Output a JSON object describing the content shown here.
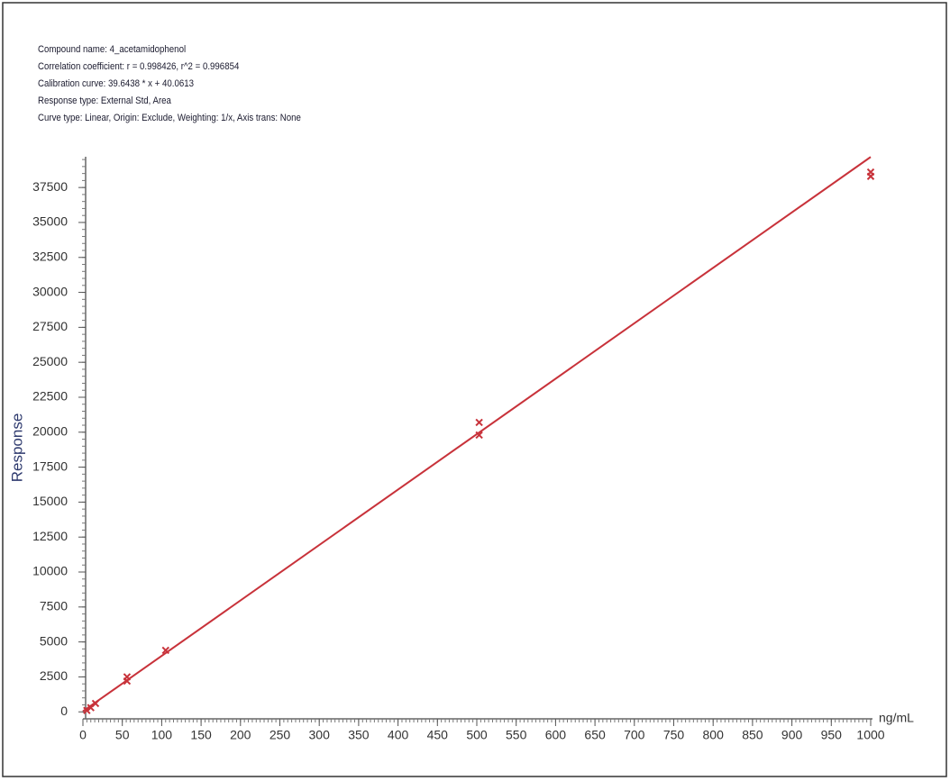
{
  "chart_data": {
    "type": "scatter",
    "header_lines": [
      "Compound name: 4_acetamidophenol",
      "Correlation coefficient: r = 0.998426, r^2 = 0.996854",
      "Calibration curve: 39.6438 * x + 40.0613",
      "Response type: External Std, Area",
      "Curve type: Linear, Origin: Exclude, Weighting: 1/x, Axis trans: None"
    ],
    "ylabel": "Response",
    "xlabel": "ng/mL",
    "color": "#c8323a",
    "x": [
      5,
      10,
      16,
      56,
      56,
      105,
      503,
      503,
      1000,
      1000
    ],
    "values": [
      100,
      300,
      600,
      2500,
      2200,
      4400,
      20700,
      19800,
      38600,
      38300
    ],
    "fit_line": {
      "x": [
        0,
        1000
      ],
      "y": [
        40.0613,
        39683.8613
      ]
    },
    "xlim": [
      0,
      1000
    ],
    "ylim": [
      -500,
      39700
    ],
    "xticks": [
      0,
      50,
      100,
      150,
      200,
      250,
      300,
      350,
      400,
      450,
      500,
      550,
      600,
      650,
      700,
      750,
      800,
      850,
      900,
      950,
      1000
    ],
    "yticks": [
      0,
      2500,
      5000,
      7500,
      10000,
      12500,
      15000,
      17500,
      20000,
      22500,
      25000,
      27500,
      30000,
      32500,
      35000,
      37500
    ],
    "x_minor_step": 5,
    "y_minor_step": 500
  }
}
